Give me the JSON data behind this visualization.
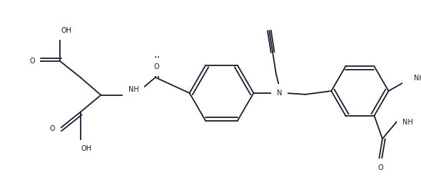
{
  "bg_color": "#ffffff",
  "line_color": "#1a1a2e",
  "lw": 1.3,
  "fs": 7.0,
  "figsize": [
    5.9,
    2.56
  ],
  "dpi": 100,
  "xlim": [
    0,
    590
  ],
  "ylim": [
    0,
    256
  ]
}
